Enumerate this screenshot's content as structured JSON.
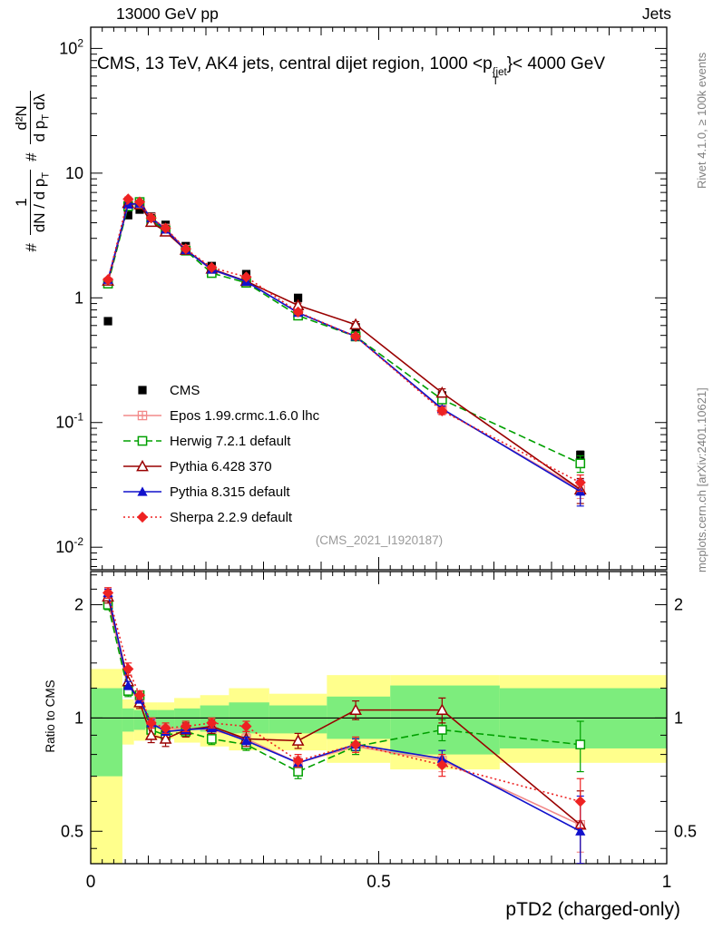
{
  "header": {
    "left": "13000 GeV pp",
    "right": "Jets"
  },
  "title": {
    "pre": "CMS, 13 TeV, AK4 jets, central dijet region, 1000 <p",
    "sup": "{jet",
    "sub": "T",
    "post": "}< 4000 GeV"
  },
  "captions": {
    "right_top": "Rivet 4.1.0, ≥ 100k events",
    "right_bottom": "mcplots.cern.ch [arXiv:2401.10621]"
  },
  "watermark": "(CMS_2021_I1920187)",
  "axes": {
    "xlabel": "pTD2 (charged-only)",
    "ratio_ylabel": "Ratio to CMS",
    "main_ylabel": {
      "hash1": "#",
      "num1": "1",
      "den1_a": "dN / d p",
      "den1_sub": "T",
      "hash2": "#",
      "num2": "d²N",
      "den2_a": "d p",
      "den2_sub": "T",
      "den2_b": " dλ"
    },
    "x_ticks": [
      {
        "v": 0,
        "label": "0"
      },
      {
        "v": 0.5,
        "label": "0.5"
      },
      {
        "v": 1,
        "label": "1"
      }
    ],
    "main_y_ticks": [
      {
        "v": 100,
        "base": "10",
        "exp": "2"
      },
      {
        "v": 10,
        "base": "10",
        "exp": ""
      },
      {
        "v": 1,
        "base": "1",
        "exp": ""
      },
      {
        "v": 0.1,
        "base": "10",
        "exp": "-1"
      },
      {
        "v": 0.01,
        "base": "10",
        "exp": "-2"
      }
    ],
    "ratio_y_ticks": [
      {
        "v": 2,
        "label": "2"
      },
      {
        "v": 1,
        "label": "1"
      },
      {
        "v": 0.5,
        "label": "0.5"
      }
    ]
  },
  "chart_data": {
    "type": "line",
    "title": "CMS, 13 TeV, AK4 jets, central dijet region, 1000 < pT(jet) < 4000 GeV",
    "xlabel": "pTD2 (charged-only)",
    "xlim": [
      0,
      1
    ],
    "x": [
      0.03,
      0.065,
      0.085,
      0.105,
      0.13,
      0.165,
      0.21,
      0.27,
      0.36,
      0.46,
      0.61,
      0.85
    ],
    "bin_edges": [
      0,
      0.055,
      0.075,
      0.095,
      0.115,
      0.145,
      0.19,
      0.24,
      0.31,
      0.41,
      0.52,
      0.71,
      1.0
    ],
    "main": {
      "ylog": true,
      "ylim": [
        0.0066,
        148
      ],
      "yticks": [
        100,
        10,
        1,
        0.1,
        0.01
      ],
      "series": [
        {
          "name": "CMS",
          "color": "#000000",
          "line": "none",
          "marker": "square-filled",
          "values": [
            0.65,
            4.6,
            5.1,
            4.5,
            3.85,
            2.6,
            1.8,
            1.55,
            1.0,
            0.58,
            0.165,
            0.055
          ],
          "err": [
            0.04,
            0.2,
            0.2,
            0.18,
            0.15,
            0.1,
            0.07,
            0.06,
            0.05,
            0.03,
            0.01,
            0.004
          ]
        },
        {
          "name": "Epos 1.99.crmc.1.6.0 lhc",
          "color": "#f28a8a",
          "line": "solid",
          "marker": "square-cross",
          "values": [
            1.33,
            5.5,
            5.7,
            4.4,
            3.6,
            2.44,
            1.67,
            1.36,
            0.76,
            0.49,
            0.127,
            0.029
          ]
        },
        {
          "name": "Herwig 7.2.1 default",
          "color": "#00a000",
          "line": "dashed",
          "marker": "square-open",
          "values": [
            1.3,
            5.43,
            5.87,
            4.19,
            3.47,
            2.39,
            1.58,
            1.32,
            0.72,
            0.49,
            0.153,
            0.047
          ]
        },
        {
          "name": "Pythia 6.428 370",
          "color": "#990000",
          "line": "solid",
          "marker": "triangle-open",
          "values": [
            1.37,
            5.75,
            5.61,
            4.05,
            3.39,
            2.42,
            1.71,
            1.36,
            0.87,
            0.61,
            0.173,
            0.029
          ]
        },
        {
          "name": "Pythia 8.315 default",
          "color": "#1111cc",
          "line": "solid",
          "marker": "triangle-filled",
          "values": [
            1.4,
            5.61,
            5.71,
            4.37,
            3.54,
            2.42,
            1.69,
            1.35,
            0.76,
            0.49,
            0.129,
            0.028
          ]
        },
        {
          "name": "Sherpa 2.2.9 default",
          "color": "#ee2222",
          "line": "dotted",
          "marker": "diamond-filled",
          "values": [
            1.4,
            6.2,
            5.87,
            4.37,
            3.62,
            2.47,
            1.75,
            1.47,
            0.77,
            0.49,
            0.124,
            0.033
          ]
        }
      ]
    },
    "ratio": {
      "ylog": true,
      "ylim": [
        0.41,
        2.45
      ],
      "yticks": [
        2,
        1,
        0.5
      ],
      "reference": "CMS",
      "series": [
        {
          "name": "Epos 1.99.crmc.1.6.0 lhc",
          "color": "#f28a8a",
          "line": "solid",
          "marker": "square-cross",
          "values": [
            2.05,
            1.2,
            1.12,
            0.97,
            0.93,
            0.94,
            0.93,
            0.88,
            0.76,
            0.84,
            0.77,
            0.52
          ],
          "err": [
            0.06,
            0.04,
            0.03,
            0.03,
            0.03,
            0.03,
            0.03,
            0.03,
            0.03,
            0.04,
            0.05,
            0.08
          ]
        },
        {
          "name": "Herwig 7.2.1 default",
          "color": "#00a000",
          "line": "dashed",
          "marker": "square-open",
          "values": [
            2.0,
            1.18,
            1.15,
            0.93,
            0.9,
            0.92,
            0.88,
            0.85,
            0.72,
            0.84,
            0.93,
            0.85
          ],
          "err": [
            0.06,
            0.04,
            0.03,
            0.03,
            0.03,
            0.03,
            0.03,
            0.03,
            0.03,
            0.04,
            0.06,
            0.13
          ]
        },
        {
          "name": "Pythia 6.428 370",
          "color": "#990000",
          "line": "solid",
          "marker": "triangle-open",
          "values": [
            2.1,
            1.25,
            1.1,
            0.9,
            0.88,
            0.93,
            0.95,
            0.88,
            0.87,
            1.05,
            1.05,
            0.52
          ],
          "err": [
            0.08,
            0.05,
            0.04,
            0.04,
            0.04,
            0.04,
            0.04,
            0.04,
            0.04,
            0.06,
            0.08,
            0.12
          ]
        },
        {
          "name": "Pythia 8.315 default",
          "color": "#1111cc",
          "line": "solid",
          "marker": "triangle-filled",
          "values": [
            2.15,
            1.22,
            1.12,
            0.97,
            0.92,
            0.93,
            0.94,
            0.87,
            0.76,
            0.85,
            0.78,
            0.5
          ],
          "err": [
            0.05,
            0.03,
            0.02,
            0.02,
            0.02,
            0.02,
            0.02,
            0.02,
            0.02,
            0.03,
            0.04,
            0.12
          ]
        },
        {
          "name": "Sherpa 2.2.9 default",
          "color": "#ee2222",
          "line": "dotted",
          "marker": "diamond-filled",
          "values": [
            2.15,
            1.35,
            1.15,
            0.97,
            0.94,
            0.95,
            0.97,
            0.95,
            0.77,
            0.85,
            0.75,
            0.6
          ],
          "err": [
            0.07,
            0.05,
            0.03,
            0.03,
            0.03,
            0.03,
            0.03,
            0.03,
            0.03,
            0.04,
            0.05,
            0.09
          ]
        }
      ],
      "bands": {
        "yellow_color": "#ffff8c",
        "green_color": "#7ded7d",
        "yellow": [
          [
            0.35,
            1.35
          ],
          [
            0.85,
            1.12
          ],
          [
            0.87,
            1.1
          ],
          [
            0.88,
            1.1
          ],
          [
            0.88,
            1.1
          ],
          [
            0.86,
            1.13
          ],
          [
            0.84,
            1.15
          ],
          [
            0.82,
            1.2
          ],
          [
            0.82,
            1.16
          ],
          [
            0.76,
            1.3
          ],
          [
            0.73,
            1.3
          ],
          [
            0.76,
            1.3
          ]
        ],
        "green": [
          [
            0.7,
            1.2
          ],
          [
            0.92,
            1.06
          ],
          [
            0.93,
            1.05
          ],
          [
            0.94,
            1.05
          ],
          [
            0.94,
            1.05
          ],
          [
            0.93,
            1.06
          ],
          [
            0.92,
            1.08
          ],
          [
            0.91,
            1.1
          ],
          [
            0.91,
            1.08
          ],
          [
            0.88,
            1.14
          ],
          [
            0.8,
            1.22
          ],
          [
            0.83,
            1.2
          ]
        ]
      }
    }
  }
}
